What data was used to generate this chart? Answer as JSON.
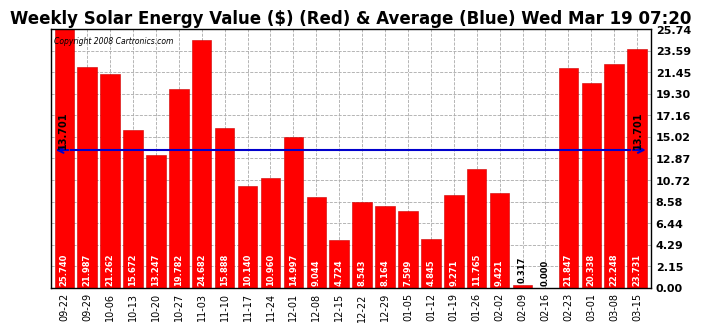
{
  "title": "Weekly Solar Energy Value ($) (Red) & Average (Blue) Wed Mar 19 07:20",
  "copyright": "Copyright 2008 Cartronics.com",
  "categories": [
    "09-22",
    "09-29",
    "10-06",
    "10-13",
    "10-20",
    "10-27",
    "11-03",
    "11-10",
    "11-17",
    "11-24",
    "12-01",
    "12-08",
    "12-15",
    "12-22",
    "12-29",
    "01-05",
    "01-12",
    "01-19",
    "01-26",
    "02-02",
    "02-09",
    "02-16",
    "02-23",
    "03-01",
    "03-08",
    "03-15"
  ],
  "values": [
    25.74,
    21.987,
    21.262,
    15.672,
    13.247,
    19.782,
    24.682,
    15.888,
    10.14,
    10.96,
    14.997,
    9.044,
    4.724,
    8.543,
    8.164,
    7.599,
    4.845,
    9.271,
    11.765,
    9.421,
    0.317,
    0.0,
    21.847,
    20.338,
    22.248,
    23.731
  ],
  "average": 13.701,
  "bar_color": "#ff0000",
  "avg_color": "#0000cc",
  "yticks": [
    0.0,
    2.15,
    4.29,
    6.44,
    8.58,
    10.72,
    12.87,
    15.02,
    17.16,
    19.3,
    21.45,
    23.59,
    25.74
  ],
  "ylim": [
    0,
    25.74
  ],
  "background_color": "#ffffff",
  "grid_color": "#aaaaaa",
  "title_fontsize": 12,
  "value_fontsize": 6,
  "tick_fontsize": 7,
  "ytick_fontsize": 8
}
